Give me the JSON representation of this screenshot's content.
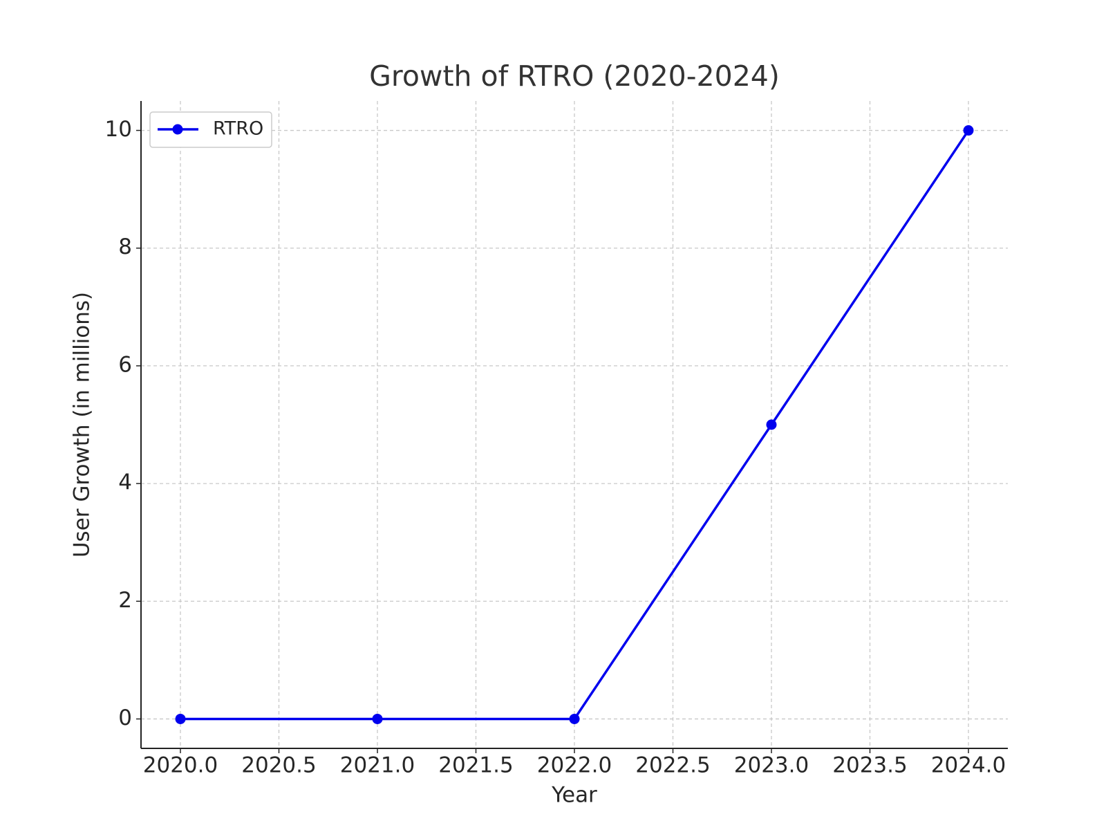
{
  "chart_data": {
    "type": "line",
    "title": "Growth of RTRO (2020-2024)",
    "x_label": "Year",
    "y_label": "User Growth (in millions)",
    "x": [
      2020,
      2021,
      2022,
      2023,
      2024
    ],
    "series": [
      {
        "name": "RTRO",
        "color": "#0000ee",
        "values": [
          0,
          0,
          0,
          5,
          10
        ]
      }
    ],
    "xlim": [
      2019.8,
      2024.2
    ],
    "xticks": [
      {
        "value": 2020,
        "label": "2020.0"
      },
      {
        "value": 2020.5,
        "label": "2020.5"
      },
      {
        "value": 2021,
        "label": "2021.0"
      },
      {
        "value": 2021.5,
        "label": "2021.5"
      },
      {
        "value": 2022,
        "label": "2022.0"
      },
      {
        "value": 2022.5,
        "label": "2022.5"
      },
      {
        "value": 2023,
        "label": "2023.0"
      },
      {
        "value": 2023.5,
        "label": "2023.5"
      },
      {
        "value": 2024,
        "label": "2024.0"
      }
    ],
    "ylim": [
      -0.5,
      10.5
    ],
    "yticks": [
      0,
      2,
      4,
      6,
      8,
      10
    ],
    "grid": true,
    "legend": "upper-left"
  }
}
